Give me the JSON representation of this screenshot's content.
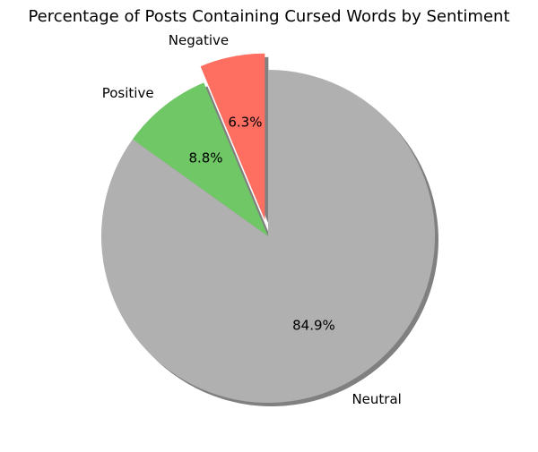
{
  "chart_data": {
    "type": "pie",
    "title": "Percentage of Posts Containing Cursed Words by Sentiment",
    "slices": [
      {
        "label": "Negative",
        "value": 6.3,
        "pct_label": "6.3%",
        "color": "#ff6f61",
        "exploded": true
      },
      {
        "label": "Positive",
        "value": 8.8,
        "pct_label": "8.8%",
        "color": "#6fc766",
        "exploded": false
      },
      {
        "label": "Neutral",
        "value": 84.9,
        "pct_label": "84.9%",
        "color": "#b0b0b0",
        "exploded": false
      }
    ],
    "start_angle_deg": 90,
    "direction": "counterclockwise",
    "shadow": true,
    "shadow_color": "#808080"
  }
}
